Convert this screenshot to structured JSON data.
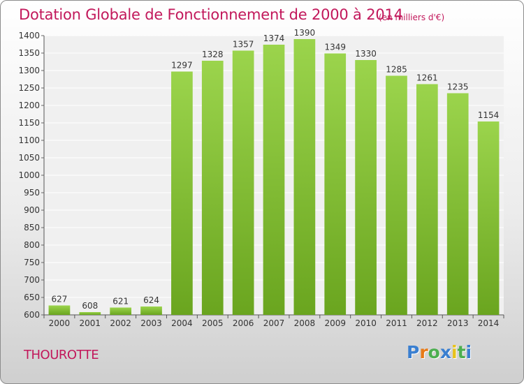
{
  "chart_data": {
    "type": "bar",
    "title": "Dotation Globale de Fonctionnement de 2000 à 2014",
    "unit": "(en milliers d'€)",
    "categories": [
      "2000",
      "2001",
      "2002",
      "2003",
      "2004",
      "2005",
      "2006",
      "2007",
      "2008",
      "2009",
      "2010",
      "2011",
      "2012",
      "2013",
      "2014"
    ],
    "values": [
      627,
      608,
      621,
      624,
      1297,
      1328,
      1357,
      1374,
      1390,
      1349,
      1330,
      1285,
      1261,
      1235,
      1154
    ],
    "ylim": [
      600,
      1400
    ],
    "yticks": [
      600,
      650,
      700,
      750,
      800,
      850,
      900,
      950,
      1000,
      1050,
      1100,
      1150,
      1200,
      1250,
      1300,
      1350,
      1400
    ],
    "grid": true,
    "bar_color_top": "#9bd44c",
    "bar_color_bottom": "#6aa51f"
  },
  "commune": "THOUROTTE",
  "logo": {
    "letters": [
      "P",
      "r",
      "o",
      "x",
      "i",
      "t",
      "i"
    ],
    "colors": [
      "#3a7fd0",
      "#e87a17",
      "#4caf50",
      "#3a7fd0",
      "#e8c21a",
      "#4caf50",
      "#3a7fd0"
    ]
  }
}
